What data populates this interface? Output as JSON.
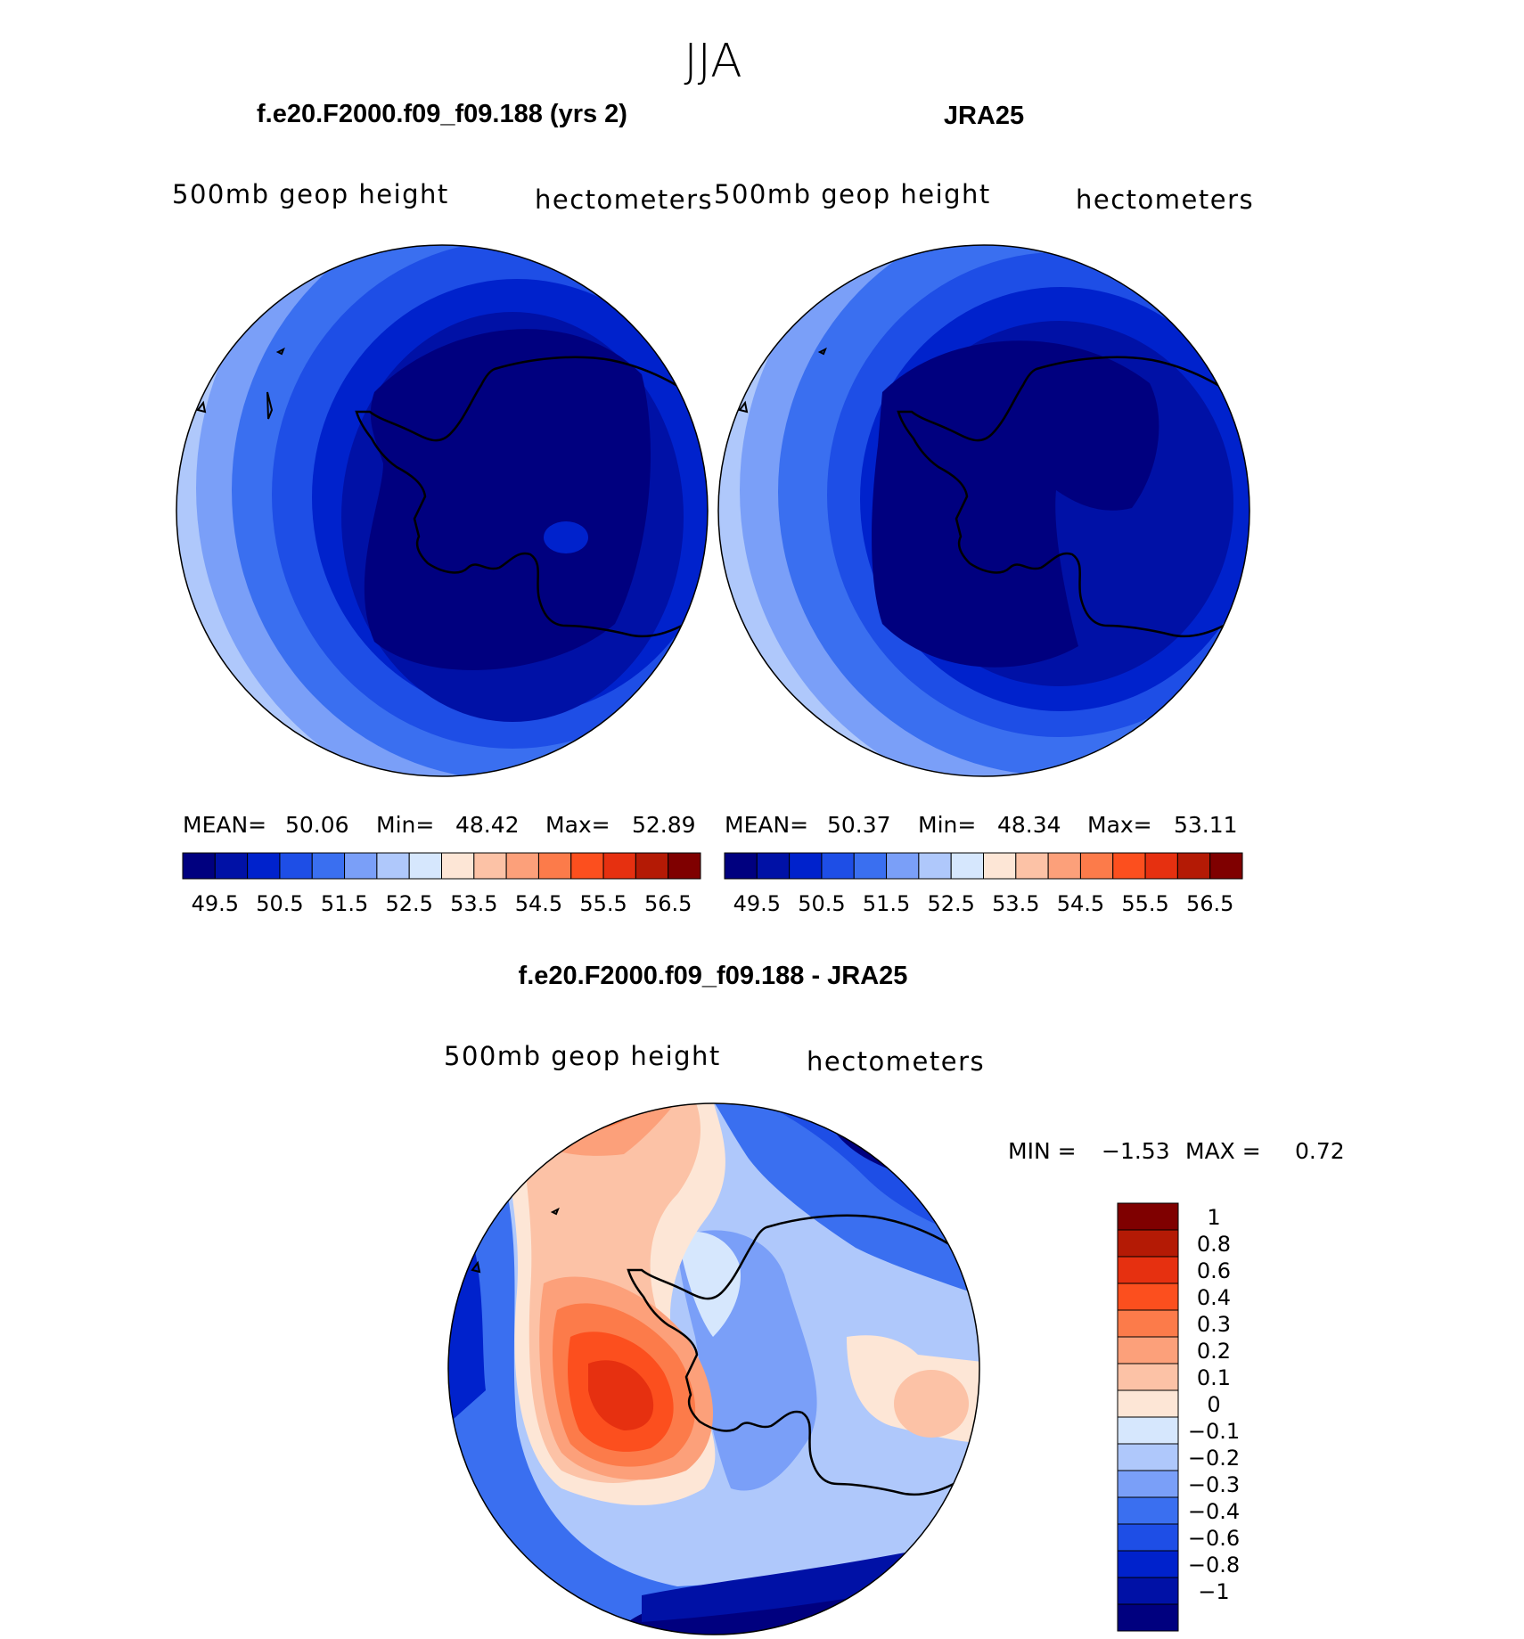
{
  "figure": {
    "title": "JJA",
    "panels": [
      {
        "id": "model",
        "heading": "f.e20.F2000.f09_f09.188 (yrs 2)",
        "variable": "500mb geop height",
        "units": "hectometers",
        "stats": {
          "mean_label": "MEAN=",
          "mean": "50.06",
          "min_label": "Min=",
          "min": "48.42",
          "max_label": "Max=",
          "max": "52.89"
        }
      },
      {
        "id": "obs",
        "heading": "JRA25",
        "variable": "500mb geop height",
        "units": "hectometers",
        "stats": {
          "mean_label": "MEAN=",
          "mean": "50.37",
          "min_label": "Min=",
          "min": "48.34",
          "max_label": "Max=",
          "max": "53.11"
        }
      },
      {
        "id": "diff",
        "heading": "f.e20.F2000.f09_f09.188 - JRA25",
        "variable": "500mb geop height",
        "units": "hectometers",
        "stats": {
          "min_label": "MIN =",
          "min": "−1.53",
          "max_label": "MAX =",
          "max": "0.72"
        }
      }
    ]
  },
  "colorbars": {
    "height": {
      "colors": [
        "#00007f",
        "#0011a6",
        "#0022cc",
        "#1e4ee6",
        "#3a6ff0",
        "#7a9ff8",
        "#afc8fb",
        "#d6e7fd",
        "#fde6d6",
        "#fcc2a6",
        "#fca07a",
        "#fc7b4a",
        "#fc4f1e",
        "#e63010",
        "#b41a05",
        "#7f0000"
      ],
      "ticks": [
        "49.5",
        "50.5",
        "51.5",
        "52.5",
        "53.5",
        "54.5",
        "55.5",
        "56.5"
      ]
    },
    "diff": {
      "colors": [
        "#7f0000",
        "#b41a05",
        "#e63010",
        "#fc4f1e",
        "#fc7b4a",
        "#fca07a",
        "#fcc2a6",
        "#fde6d6",
        "#d6e7fd",
        "#afc8fb",
        "#7a9ff8",
        "#3a6ff0",
        "#1e4ee6",
        "#0022cc",
        "#0011a6",
        "#00007f"
      ],
      "ticks": [
        "1",
        "0.8",
        "0.6",
        "0.4",
        "0.3",
        "0.2",
        "0.1",
        "0",
        "−0.1",
        "−0.2",
        "−0.3",
        "−0.4",
        "−0.6",
        "−0.8",
        "−1"
      ]
    }
  }
}
